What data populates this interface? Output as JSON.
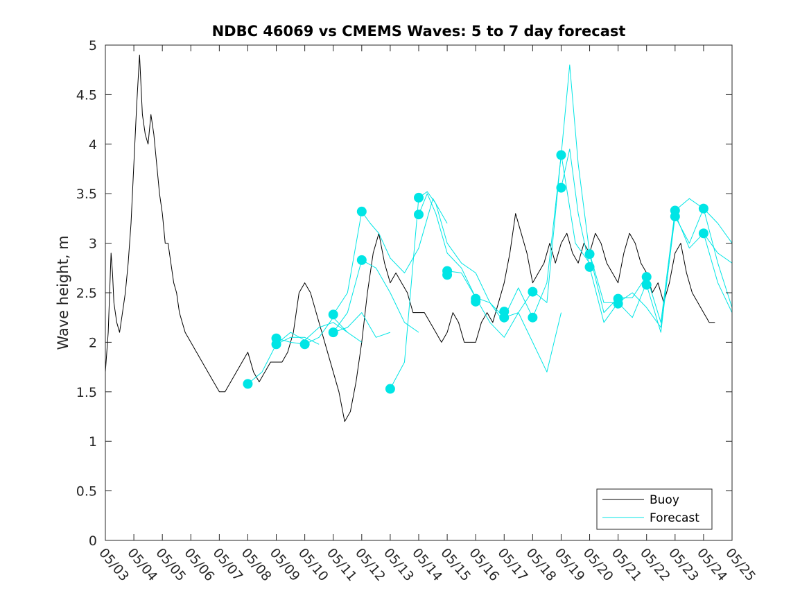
{
  "chart_data": {
    "type": "line",
    "title": "NDBC 46069 vs CMEMS Waves: 5 to 7 day forecast",
    "xlabel": "",
    "ylabel": "Wave height, m",
    "ylim": [
      0,
      5
    ],
    "yticks": [
      "0",
      "0.5",
      "1",
      "1.5",
      "2",
      "2.5",
      "3",
      "3.5",
      "4",
      "4.5",
      "5"
    ],
    "xlim": [
      0,
      22
    ],
    "xticks": [
      "05/03",
      "05/04",
      "05/05",
      "05/06",
      "05/07",
      "05/08",
      "05/09",
      "05/10",
      "05/11",
      "05/12",
      "05/13",
      "05/14",
      "05/15",
      "05/16",
      "05/17",
      "05/18",
      "05/19",
      "05/20",
      "05/21",
      "05/22",
      "05/23",
      "05/24",
      "05/25"
    ],
    "grid": false,
    "legend": {
      "placement": "bottom-right",
      "entries": [
        "Buoy",
        "Forecast"
      ]
    },
    "colors": {
      "buoy": "#000000",
      "forecast": "#00e5e5"
    },
    "series": [
      {
        "name": "Buoy",
        "x": [
          0.0,
          0.1,
          0.2,
          0.25,
          0.3,
          0.4,
          0.5,
          0.6,
          0.7,
          0.8,
          0.9,
          1.0,
          1.1,
          1.2,
          1.3,
          1.4,
          1.5,
          1.6,
          1.7,
          1.8,
          1.9,
          2.0,
          2.1,
          2.2,
          2.3,
          2.4,
          2.5,
          2.6,
          2.7,
          2.8,
          3.0,
          3.2,
          3.4,
          3.6,
          3.8,
          4.0,
          4.2,
          4.4,
          4.6,
          4.8,
          5.0,
          5.2,
          5.4,
          5.6,
          5.8,
          6.0,
          6.2,
          6.4,
          6.6,
          6.8,
          7.0,
          7.2,
          7.4,
          7.6,
          7.8,
          8.0,
          8.2,
          8.4,
          8.6,
          8.8,
          9.0,
          9.2,
          9.4,
          9.6,
          9.8,
          10.0,
          10.2,
          10.4,
          10.6,
          10.8,
          11.0,
          11.2,
          11.4,
          11.6,
          11.8,
          12.0,
          12.2,
          12.4,
          12.6,
          12.8,
          13.0,
          13.2,
          13.4,
          13.6,
          13.8,
          14.0,
          14.2,
          14.4,
          14.6,
          14.8,
          15.0,
          15.2,
          15.4,
          15.6,
          15.8,
          16.0,
          16.2,
          16.4,
          16.6,
          16.8,
          17.0,
          17.2,
          17.4,
          17.6,
          17.8,
          18.0,
          18.2,
          18.4,
          18.6,
          18.8,
          19.0,
          19.2,
          19.4,
          19.6,
          19.8,
          20.0,
          20.2,
          20.4,
          20.6,
          20.8,
          21.0,
          21.2,
          21.4
        ],
        "y": [
          1.7,
          2.1,
          2.9,
          2.7,
          2.4,
          2.2,
          2.1,
          2.3,
          2.5,
          2.8,
          3.2,
          3.8,
          4.4,
          4.9,
          4.3,
          4.1,
          4.0,
          4.3,
          4.1,
          3.8,
          3.5,
          3.3,
          3.0,
          3.0,
          2.8,
          2.6,
          2.5,
          2.3,
          2.2,
          2.1,
          2.0,
          1.9,
          1.8,
          1.7,
          1.6,
          1.5,
          1.5,
          1.6,
          1.7,
          1.8,
          1.9,
          1.7,
          1.6,
          1.7,
          1.8,
          1.8,
          1.8,
          1.9,
          2.1,
          2.5,
          2.6,
          2.5,
          2.3,
          2.1,
          1.9,
          1.7,
          1.5,
          1.2,
          1.3,
          1.6,
          2.0,
          2.5,
          2.9,
          3.1,
          2.8,
          2.6,
          2.7,
          2.6,
          2.5,
          2.3,
          2.3,
          2.3,
          2.2,
          2.1,
          2.0,
          2.1,
          2.3,
          2.2,
          2.0,
          2.0,
          2.0,
          2.2,
          2.3,
          2.2,
          2.4,
          2.6,
          2.9,
          3.3,
          3.1,
          2.9,
          2.6,
          2.7,
          2.8,
          3.0,
          2.8,
          3.0,
          3.1,
          2.9,
          2.8,
          3.0,
          2.9,
          3.1,
          3.0,
          2.8,
          2.7,
          2.6,
          2.9,
          3.1,
          3.0,
          2.8,
          2.7,
          2.5,
          2.6,
          2.4,
          2.6,
          2.9,
          3.0,
          2.7,
          2.5,
          2.4,
          2.3,
          2.2,
          2.2
        ]
      },
      {
        "name": "Forecast",
        "x": [
          5.0,
          5.5,
          6.0,
          6.5,
          7.0,
          7.5
        ],
        "y": [
          1.58,
          1.7,
          1.98,
          2.05,
          2.05,
          1.98
        ]
      },
      {
        "name": "Forecast",
        "x": [
          6.0,
          6.5,
          7.0,
          7.5,
          8.0,
          8.5,
          9.0
        ],
        "y": [
          1.98,
          2.1,
          2.02,
          2.15,
          2.2,
          2.1,
          2.0
        ]
      },
      {
        "name": "Forecast",
        "x": [
          6.0,
          6.5,
          7.0,
          7.5,
          8.0,
          8.5
        ],
        "y": [
          2.04,
          2.0,
          1.98,
          2.05,
          2.25,
          2.1
        ]
      },
      {
        "name": "Forecast",
        "x": [
          8.0,
          8.5,
          9.0,
          9.3,
          9.6,
          10.0,
          10.5,
          11.0,
          11.5,
          12.0
        ],
        "y": [
          2.28,
          2.5,
          3.32,
          3.2,
          3.1,
          2.85,
          2.7,
          2.95,
          3.45,
          3.2
        ]
      },
      {
        "name": "Forecast",
        "x": [
          8.0,
          8.5,
          9.0,
          9.5,
          10.0,
          10.5,
          11.0
        ],
        "y": [
          2.1,
          2.3,
          2.83,
          2.75,
          2.5,
          2.2,
          2.1
        ]
      },
      {
        "name": "Forecast",
        "x": [
          8.0,
          8.5,
          9.0,
          9.5,
          10.0
        ],
        "y": [
          2.1,
          2.15,
          2.3,
          2.05,
          2.1
        ]
      },
      {
        "name": "Forecast",
        "x": [
          10.0,
          10.5,
          11.0,
          11.3,
          11.6,
          12.0,
          12.5,
          13.0,
          13.5,
          14.0
        ],
        "y": [
          1.53,
          1.8,
          3.46,
          3.52,
          3.4,
          3.0,
          2.8,
          2.7,
          2.4,
          2.2
        ]
      },
      {
        "name": "Forecast",
        "x": [
          11.0,
          11.3,
          11.6,
          12.0,
          12.5,
          13.0,
          13.5,
          14.0,
          14.5,
          15.0,
          15.5,
          16.0
        ],
        "y": [
          3.29,
          3.5,
          3.3,
          2.9,
          2.75,
          2.45,
          2.2,
          2.05,
          2.3,
          2.0,
          1.7,
          2.3
        ]
      },
      {
        "name": "Forecast",
        "x": [
          12.0,
          12.5,
          13.0,
          13.5,
          14.0,
          14.5,
          15.0,
          15.5,
          16.0,
          16.5,
          17.0
        ],
        "y": [
          2.72,
          2.7,
          2.45,
          2.4,
          2.25,
          2.3,
          2.52,
          2.4,
          3.9,
          3.0,
          2.8
        ]
      },
      {
        "name": "Forecast",
        "x": [
          14.0,
          14.5,
          15.0,
          15.5,
          16.0,
          16.3,
          16.6,
          17.0,
          17.5,
          18.0,
          18.5,
          19.0
        ],
        "y": [
          2.25,
          2.55,
          2.25,
          2.6,
          3.89,
          4.8,
          3.8,
          2.9,
          2.4,
          2.4,
          2.25,
          2.6
        ]
      },
      {
        "name": "Forecast",
        "x": [
          16.0,
          16.3,
          16.6,
          17.0,
          17.5,
          18.0,
          18.5,
          19.0,
          19.5,
          20.0
        ],
        "y": [
          3.56,
          3.95,
          3.3,
          2.76,
          2.2,
          2.4,
          2.5,
          2.35,
          2.15,
          3.27
        ]
      },
      {
        "name": "Forecast",
        "x": [
          17.0,
          17.5,
          18.0,
          18.5,
          19.0,
          19.5,
          20.0,
          20.5,
          21.0,
          21.5,
          22.0
        ],
        "y": [
          2.89,
          2.3,
          2.45,
          2.45,
          2.67,
          2.2,
          3.33,
          3.45,
          3.35,
          3.2,
          3.0
        ]
      },
      {
        "name": "Forecast",
        "x": [
          19.0,
          19.5,
          20.0,
          20.5,
          21.0,
          21.5,
          22.0
        ],
        "y": [
          2.58,
          2.1,
          3.3,
          2.95,
          3.1,
          2.6,
          2.3
        ]
      },
      {
        "name": "Forecast",
        "x": [
          20.0,
          20.5,
          21.0,
          21.5,
          22.0
        ],
        "y": [
          3.27,
          3.0,
          3.35,
          2.8,
          2.35
        ]
      },
      {
        "name": "Forecast",
        "x": [
          21.0,
          21.5,
          22.0
        ],
        "y": [
          3.1,
          2.9,
          2.8
        ]
      }
    ],
    "markers": {
      "name": "Forecast",
      "x": [
        5.0,
        6.0,
        6.0,
        7.0,
        8.0,
        8.0,
        9.0,
        9.0,
        10.0,
        11.0,
        11.0,
        12.0,
        12.0,
        13.0,
        13.0,
        14.0,
        14.0,
        15.0,
        15.0,
        16.0,
        16.0,
        17.0,
        17.0,
        18.0,
        18.0,
        19.0,
        19.0,
        20.0,
        20.0,
        21.0,
        21.0
      ],
      "y": [
        1.58,
        2.04,
        1.98,
        1.98,
        2.28,
        2.1,
        3.32,
        2.83,
        1.53,
        3.46,
        3.29,
        2.72,
        2.68,
        2.44,
        2.41,
        2.31,
        2.25,
        2.51,
        2.25,
        3.89,
        3.56,
        2.89,
        2.76,
        2.44,
        2.39,
        2.66,
        2.58,
        3.33,
        3.27,
        3.35,
        3.1
      ]
    }
  }
}
